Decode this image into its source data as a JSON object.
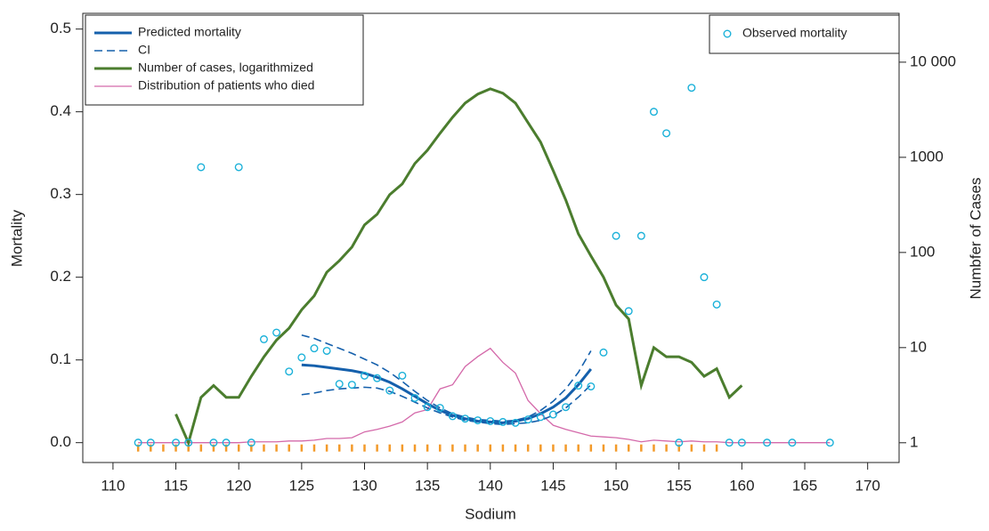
{
  "chart_data": {
    "type": "line",
    "x_label": "Sodium",
    "y_label": "Mortality",
    "y2_label": "Numbfer of Cases",
    "xlim": [
      107.6,
      172.5
    ],
    "xticks": [
      110,
      115,
      120,
      125,
      130,
      135,
      140,
      145,
      150,
      155,
      160,
      165,
      170
    ],
    "ylim": [
      -0.024,
      0.519
    ],
    "yticks": [
      {
        "value": 0,
        "label": "0.0"
      },
      0.1,
      0.2,
      0.3,
      0.4,
      0.5
    ],
    "y2scale": "log",
    "y2lim": [
      0.62,
      32600
    ],
    "y2ticks": [
      1,
      10,
      100,
      1000,
      {
        "value": 10000,
        "label": "10 000"
      }
    ],
    "series": [
      {
        "name": "Predicted mortality",
        "mark": "line",
        "color": "#1560ac",
        "x": [
          125,
          126,
          127,
          128,
          129,
          130,
          131,
          132,
          133,
          134,
          135,
          136,
          137,
          138,
          139,
          140,
          141,
          142,
          143,
          144,
          145,
          146,
          147,
          148
        ],
        "values": [
          0.094,
          0.093,
          0.091,
          0.089,
          0.087,
          0.084,
          0.079,
          0.073,
          0.065,
          0.056,
          0.047,
          0.039,
          0.033,
          0.029,
          0.026,
          0.025,
          0.024,
          0.026,
          0.029,
          0.035,
          0.043,
          0.054,
          0.07,
          0.089
        ]
      },
      {
        "name": "CI",
        "mark": "dashed",
        "color": "#1560ac",
        "x": [
          125,
          126,
          127,
          128,
          129,
          130,
          131,
          132,
          133,
          134,
          135,
          136,
          137,
          138,
          139,
          140,
          141,
          142,
          143,
          144,
          145,
          146,
          147,
          148
        ],
        "values": [
          0.13,
          0.126,
          0.12,
          0.114,
          0.108,
          0.101,
          0.094,
          0.085,
          0.074,
          0.062,
          0.051,
          0.042,
          0.035,
          0.031,
          0.028,
          0.027,
          0.026,
          0.027,
          0.031,
          0.039,
          0.05,
          0.065,
          0.085,
          0.111
        ],
        "lower": [
          0.058,
          0.06,
          0.063,
          0.065,
          0.066,
          0.067,
          0.066,
          0.062,
          0.056,
          0.049,
          0.042,
          0.036,
          0.031,
          0.027,
          0.025,
          0.023,
          0.022,
          0.023,
          0.024,
          0.027,
          0.033,
          0.042,
          0.055,
          0.07
        ]
      },
      {
        "name": "Number of cases, logarithmized",
        "mark": "line",
        "axis": "y2",
        "color": "#4b7d2e",
        "x": [
          115,
          116,
          117,
          118,
          119,
          120,
          121,
          122,
          123,
          124,
          125,
          126,
          127,
          128,
          129,
          130,
          131,
          132,
          133,
          134,
          135,
          136,
          137,
          138,
          139,
          140,
          141,
          142,
          143,
          144,
          145,
          146,
          147,
          148,
          149,
          150,
          151,
          152,
          153,
          154,
          155,
          156,
          157,
          158,
          159,
          160
        ],
        "values": [
          2,
          1,
          3,
          4,
          3,
          3,
          5,
          8,
          12,
          16,
          25,
          35,
          62,
          82,
          114,
          195,
          252,
          405,
          525,
          860,
          1188,
          1787,
          2635,
          3715,
          4610,
          5245,
          4710,
          3715,
          2313,
          1442,
          724,
          356,
          157,
          92,
          55,
          28,
          20,
          4,
          10,
          8,
          8,
          7,
          5,
          6,
          3,
          4
        ]
      },
      {
        "name": "Distribution of patients who died",
        "mark": "thin",
        "color": "#d469aa",
        "x": [
          112,
          113,
          114,
          115,
          116,
          117,
          118,
          119,
          120,
          121,
          122,
          123,
          124,
          125,
          126,
          127,
          128,
          129,
          130,
          131,
          132,
          133,
          134,
          135,
          136,
          137,
          138,
          139,
          140,
          141,
          142,
          143,
          144,
          145,
          146,
          147,
          148,
          149,
          150,
          151,
          152,
          153,
          154,
          155,
          156,
          157,
          158,
          159,
          160,
          161,
          162,
          163,
          164,
          165,
          166,
          167
        ],
        "values": [
          0,
          0,
          0,
          0,
          0,
          0,
          0,
          0,
          0,
          0.001,
          0.001,
          0.001,
          0.002,
          0.002,
          0.003,
          0.005,
          0.005,
          0.006,
          0.013,
          0.016,
          0.02,
          0.025,
          0.036,
          0.04,
          0.065,
          0.07,
          0.092,
          0.104,
          0.114,
          0.097,
          0.084,
          0.051,
          0.035,
          0.021,
          0.016,
          0.012,
          0.008,
          0.007,
          0.006,
          0.004,
          0.001,
          0.003,
          0.002,
          0.001,
          0.002,
          0.001,
          0.001,
          0,
          0,
          0,
          0,
          0,
          0,
          0,
          0,
          0
        ]
      },
      {
        "name": "Observed mortality",
        "mark": "circle",
        "color": "#1bb1d9",
        "x": [
          112,
          113,
          115,
          116,
          117,
          118,
          119,
          120,
          121,
          122,
          123,
          124,
          125,
          126,
          127,
          128,
          129,
          130,
          131,
          132,
          133,
          134,
          135,
          136,
          137,
          138,
          139,
          140,
          141,
          142,
          143,
          144,
          145,
          146,
          147,
          148,
          149,
          150,
          151,
          152,
          153,
          154,
          155,
          156,
          157,
          158,
          159,
          160,
          162,
          164,
          167
        ],
        "values": [
          0,
          0,
          0,
          0,
          0.333,
          0,
          0,
          0.333,
          0,
          0.125,
          0.133,
          0.086,
          0.103,
          0.114,
          0.111,
          0.071,
          0.07,
          0.081,
          0.078,
          0.063,
          0.081,
          0.054,
          0.043,
          0.042,
          0.032,
          0.029,
          0.027,
          0.026,
          0.025,
          0.024,
          0.028,
          0.031,
          0.034,
          0.043,
          0.069,
          0.068,
          0.109,
          0.25,
          0.159,
          0.25,
          0.4,
          0.374,
          0,
          0.429,
          0.2,
          0.167,
          0,
          0,
          0,
          0,
          0
        ]
      }
    ],
    "rug": [
      112,
      113,
      114,
      115,
      116,
      117,
      118,
      119,
      120,
      121,
      122,
      123,
      124,
      125,
      126,
      127,
      128,
      129,
      130,
      131,
      132,
      133,
      134,
      135,
      136,
      137,
      138,
      139,
      140,
      141,
      142,
      143,
      144,
      145,
      146,
      147,
      148,
      149,
      150,
      151,
      152,
      153,
      154,
      155,
      156,
      157,
      158
    ],
    "rug_color": "#f39a2a"
  }
}
